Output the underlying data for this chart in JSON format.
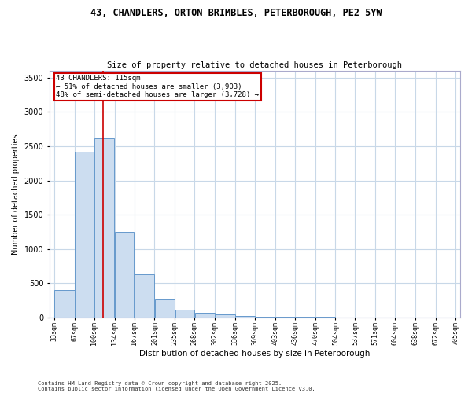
{
  "title_line1": "43, CHANDLERS, ORTON BRIMBLES, PETERBOROUGH, PE2 5YW",
  "title_line2": "Size of property relative to detached houses in Peterborough",
  "xlabel": "Distribution of detached houses by size in Peterborough",
  "ylabel": "Number of detached properties",
  "footnote1": "Contains HM Land Registry data © Crown copyright and database right 2025.",
  "footnote2": "Contains public sector information licensed under the Open Government Licence v3.0.",
  "annotation_title": "43 CHANDLERS: 115sqm",
  "annotation_line2": "← 51% of detached houses are smaller (3,903)",
  "annotation_line3": "48% of semi-detached houses are larger (3,728) →",
  "property_size": 115,
  "bar_edges": [
    33,
    67,
    100,
    134,
    167,
    201,
    235,
    268,
    302,
    336,
    369,
    403,
    436,
    470,
    504,
    537,
    571,
    604,
    638,
    672,
    705
  ],
  "bar_heights": [
    400,
    2420,
    2620,
    1250,
    630,
    260,
    110,
    65,
    40,
    25,
    15,
    10,
    7,
    5,
    4,
    3,
    2,
    2,
    1,
    1
  ],
  "bar_color": "#ccddf0",
  "bar_edge_color": "#6699cc",
  "vline_color": "#cc0000",
  "annotation_box_color": "#cc0000",
  "background_color": "#ffffff",
  "grid_color": "#c8d8e8",
  "ylim": [
    0,
    3600
  ],
  "yticks": [
    0,
    500,
    1000,
    1500,
    2000,
    2500,
    3000,
    3500
  ]
}
